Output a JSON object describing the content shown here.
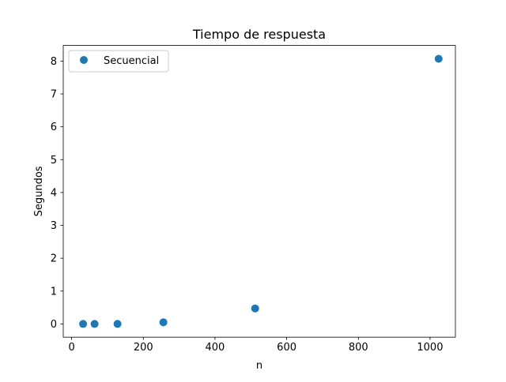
{
  "chart_data": {
    "type": "scatter",
    "title": "Tiempo de respuesta",
    "xlabel": "n",
    "ylabel": "Segundos",
    "xlim": [
      -23.36,
      1070.72
    ],
    "ylim": [
      -0.4035,
      8.4755
    ],
    "x_ticks": [
      0,
      200,
      400,
      600,
      800,
      1000
    ],
    "y_ticks": [
      0,
      1,
      2,
      3,
      4,
      5,
      6,
      7,
      8
    ],
    "grid": false,
    "legend_position": "top-left",
    "series": [
      {
        "name": "Secuencial",
        "color": "#1f77b4",
        "marker": "circle",
        "points": [
          {
            "x": 32,
            "y": 0.0
          },
          {
            "x": 64,
            "y": 0.0
          },
          {
            "x": 128,
            "y": 0.0
          },
          {
            "x": 256,
            "y": 0.05
          },
          {
            "x": 512,
            "y": 0.47
          },
          {
            "x": 1024,
            "y": 8.07
          }
        ]
      }
    ]
  }
}
